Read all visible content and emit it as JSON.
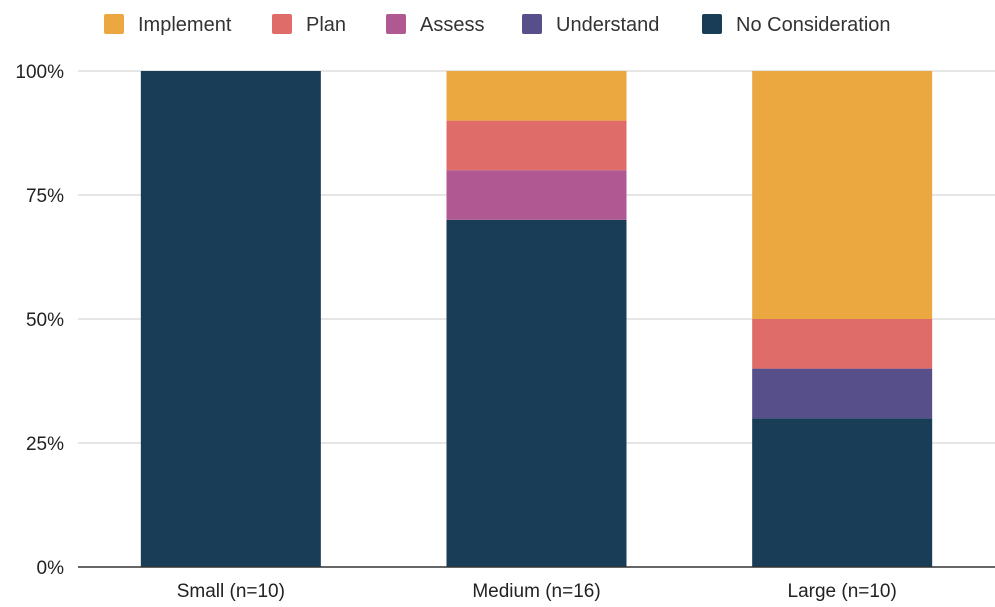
{
  "chart_data": {
    "type": "bar",
    "stacked": true,
    "categories": [
      "Small (n=10)",
      "Medium (n=16)",
      "Large (n=10)"
    ],
    "series": [
      {
        "name": "No Consideration",
        "color": "#1a3d57",
        "values": [
          100,
          70,
          30
        ]
      },
      {
        "name": "Understand",
        "color": "#564f8a",
        "values": [
          0,
          0,
          10
        ]
      },
      {
        "name": "Assess",
        "color": "#b05891",
        "values": [
          0,
          10,
          0
        ]
      },
      {
        "name": "Plan",
        "color": "#e06c6a",
        "values": [
          0,
          10,
          10
        ]
      },
      {
        "name": "Implement",
        "color": "#eba840",
        "values": [
          0,
          10,
          50
        ]
      }
    ],
    "legend_order": [
      "Implement",
      "Plan",
      "Assess",
      "Understand",
      "No Consideration"
    ],
    "legend_position": "top",
    "ylim": [
      0,
      100
    ],
    "yticks": [
      0,
      25,
      50,
      75,
      100
    ],
    "ytick_labels": [
      "0%",
      "25%",
      "50%",
      "75%",
      "100%"
    ],
    "grid": true,
    "title": "",
    "xlabel": "",
    "ylabel": ""
  }
}
